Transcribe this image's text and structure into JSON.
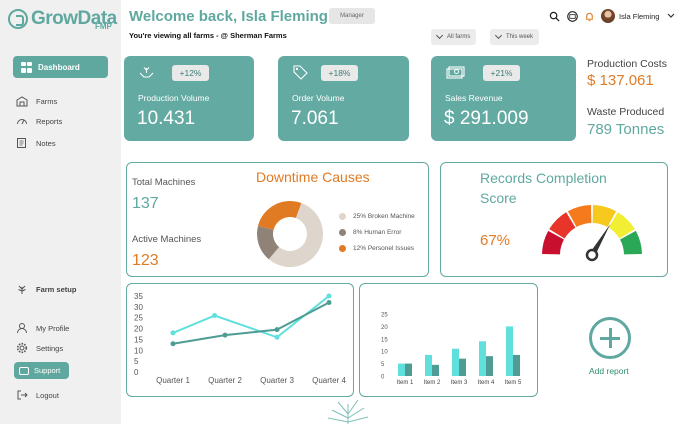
{
  "brand": {
    "name": "GrowData",
    "suffix": "FMP"
  },
  "header": {
    "welcome": "Welcome back, Isla Fleming",
    "role": "Manager",
    "subtitle": "You're viewing all farms - @ Sherman Farms",
    "filters": [
      "All farms",
      "This week"
    ],
    "user_name": "Isla Fleming"
  },
  "sidebar": {
    "active": "Dashboard",
    "items": [
      "Farms",
      "Reports",
      "Notes"
    ],
    "farm_setup": "Farm setup",
    "bottom_items": [
      "My Profile",
      "Settings",
      "Support",
      "Logout"
    ]
  },
  "kpis": [
    {
      "label": "Production Volume",
      "change": "+12%",
      "value": "10.431",
      "icon": "hands-plant-icon"
    },
    {
      "label": "Order Volume",
      "change": "+18%",
      "value": "7.061",
      "icon": "tag-icon"
    },
    {
      "label": "Sales Revenue",
      "change": "+21%",
      "value": "$ 291.009",
      "icon": "cash-icon"
    }
  ],
  "side_metrics": [
    {
      "label": "Production Costs",
      "value": "$ 137.061",
      "color": "#e07b24"
    },
    {
      "label": "Waste Produced",
      "value": "789 Tonnes",
      "color": "#5fa8a0"
    }
  ],
  "machines": {
    "total_label": "Total Machines",
    "total_value": "137",
    "active_label": "Active Machines",
    "active_value": "123"
  },
  "downtime": {
    "title": "Downtime Causes",
    "slices": [
      {
        "label": "25% Broken Machine",
        "value": 25,
        "color": "#ded5cc"
      },
      {
        "label": "8% Human Error",
        "value": 8,
        "color": "#8f8377"
      },
      {
        "label": "12% Personel Issues",
        "value": 12,
        "color": "#e07b24"
      }
    ]
  },
  "records": {
    "title_line1": "Records Completion",
    "title_line2": "Score",
    "value": "67%",
    "fraction": 0.67
  },
  "line_chart": {
    "categories": [
      "Quarter 1",
      "Quarter 2",
      "Quarter 3",
      "Quarter 4"
    ],
    "yticks": [
      "35",
      "30",
      "25",
      "20",
      "15",
      "10",
      "5",
      "0"
    ],
    "ymax": 35,
    "series": [
      {
        "color": "#5fe0dc",
        "values": [
          [
            0,
            18
          ],
          [
            0.8,
            26
          ],
          [
            2,
            16
          ],
          [
            3,
            35
          ]
        ]
      },
      {
        "color": "#4f9c95",
        "values": [
          [
            0,
            13
          ],
          [
            1,
            17
          ],
          [
            2,
            19.5
          ],
          [
            3,
            32
          ]
        ]
      }
    ]
  },
  "bar_chart": {
    "categories": [
      "Item 1",
      "Item 2",
      "Item 3",
      "Item 4",
      "Item 5"
    ],
    "yticks": [
      "25",
      "20",
      "15",
      "10",
      "5",
      "0"
    ],
    "ymax": 25,
    "series": [
      {
        "color": "#5fe0dc",
        "values": [
          5,
          8.5,
          11,
          14,
          20
        ]
      },
      {
        "color": "#4f9c95",
        "values": [
          5,
          4.5,
          7,
          8,
          8.5
        ]
      }
    ]
  },
  "add_report": {
    "label": "Add report"
  },
  "colors": {
    "teal": "#5fa8a0",
    "orange": "#e07b24"
  }
}
